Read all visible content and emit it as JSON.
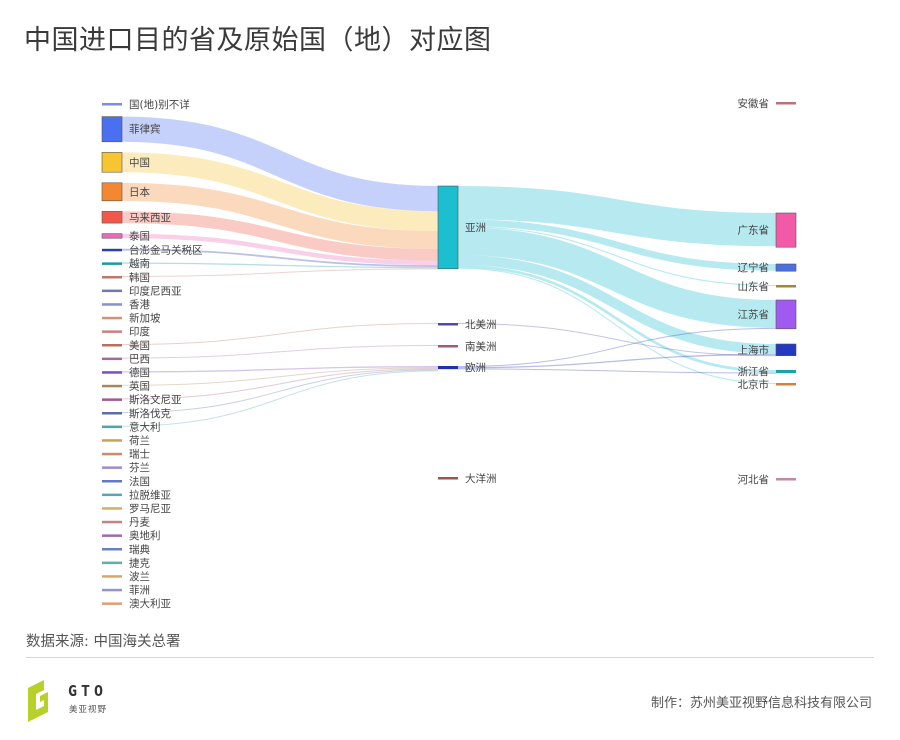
{
  "title": "中国进口目的省及原始国（地）对应图",
  "source": "数据来源: 中国海关总署",
  "footer": {
    "logo_text": "GTO",
    "logo_sub": "美亚视野",
    "maker": "制作：苏州美亚视野信息科技有限公司"
  },
  "chart_data": {
    "type": "sankey",
    "columns": [
      "origin",
      "continent",
      "province"
    ],
    "nodes": {
      "origins": [
        {
          "name": "国(地)别不详",
          "value": 0.3,
          "color": "#7b8fd8"
        },
        {
          "name": "菲律宾",
          "value": 28,
          "color": "#4a6ff0"
        },
        {
          "name": "中国",
          "value": 22,
          "color": "#f7c531"
        },
        {
          "name": "日本",
          "value": 20,
          "color": "#f48830"
        },
        {
          "name": "马来西亚",
          "value": 13,
          "color": "#ef5a4c"
        },
        {
          "name": "泰国",
          "value": 5,
          "color": "#ea6cb6"
        },
        {
          "name": "台澎金马关税区",
          "value": 2,
          "color": "#2c3fae"
        },
        {
          "name": "越南",
          "value": 1.5,
          "color": "#1b9aa3"
        },
        {
          "name": "韩国",
          "value": 1.3,
          "color": "#c0776a"
        },
        {
          "name": "印度尼西亚",
          "value": 1.2,
          "color": "#6a7bb5"
        },
        {
          "name": "香港",
          "value": 1.2,
          "color": "#8a8fc7"
        },
        {
          "name": "新加坡",
          "value": 1.1,
          "color": "#d79070"
        },
        {
          "name": "印度",
          "value": 1.1,
          "color": "#c97f7f"
        },
        {
          "name": "美国",
          "value": 1.1,
          "color": "#b96f5d"
        },
        {
          "name": "巴西",
          "value": 1.1,
          "color": "#9e6b9c"
        },
        {
          "name": "德国",
          "value": 2,
          "color": "#7a4fc3"
        },
        {
          "name": "英国",
          "value": 1.1,
          "color": "#a6875a"
        },
        {
          "name": "斯洛文尼亚",
          "value": 1.1,
          "color": "#a05a8b"
        },
        {
          "name": "斯洛伐克",
          "value": 1.1,
          "color": "#5a6da8"
        },
        {
          "name": "意大利",
          "value": 1.1,
          "color": "#4ea4a8"
        },
        {
          "name": "荷兰",
          "value": 1.1,
          "color": "#c7a15a"
        },
        {
          "name": "瑞士",
          "value": 1.1,
          "color": "#d38966"
        },
        {
          "name": "芬兰",
          "value": 1.1,
          "color": "#9f8cc6"
        },
        {
          "name": "法国",
          "value": 1.1,
          "color": "#6675c4"
        },
        {
          "name": "拉脱维亚",
          "value": 1.1,
          "color": "#58a7b0"
        },
        {
          "name": "罗马尼亚",
          "value": 1.1,
          "color": "#d3ad63"
        },
        {
          "name": "丹麦",
          "value": 1.1,
          "color": "#c98080"
        },
        {
          "name": "奥地利",
          "value": 1.1,
          "color": "#a06aa5"
        },
        {
          "name": "瑞典",
          "value": 1.1,
          "color": "#6b7fc7"
        },
        {
          "name": "捷克",
          "value": 1.1,
          "color": "#5bb0b3"
        },
        {
          "name": "波兰",
          "value": 1.1,
          "color": "#d2aa62"
        },
        {
          "name": "菲洲",
          "value": 1.1,
          "color": "#9b8fd6"
        },
        {
          "name": "澳大利亚",
          "value": 1.1,
          "color": "#d9a07a"
        }
      ],
      "continents": [
        {
          "name": "亚洲",
          "value": 92,
          "color": "#1bbfd0"
        },
        {
          "name": "北美洲",
          "value": 1.1,
          "color": "#4c4ca8"
        },
        {
          "name": "南美洲",
          "value": 1.1,
          "color": "#a05a7a"
        },
        {
          "name": "欧洲",
          "value": 3.5,
          "color": "#2231b0"
        },
        {
          "name": "大洋洲",
          "value": 1.1,
          "color": "#a0524f"
        }
      ],
      "provinces": [
        {
          "name": "安徽省",
          "value": 0.3,
          "color": "#c0707a"
        },
        {
          "name": "广东省",
          "value": 38,
          "color": "#f25aa8"
        },
        {
          "name": "辽宁省",
          "value": 8,
          "color": "#4a6fe0"
        },
        {
          "name": "山东省",
          "value": 1.3,
          "color": "#a8892a"
        },
        {
          "name": "江苏省",
          "value": 32,
          "color": "#a05af0"
        },
        {
          "name": "上海市",
          "value": 13,
          "color": "#2438c0"
        },
        {
          "name": "浙江省",
          "value": 3.5,
          "color": "#1aa3a8"
        },
        {
          "name": "北京市",
          "value": 1.5,
          "color": "#d2804a"
        },
        {
          "name": "河北省",
          "value": 0.3,
          "color": "#c08aa5"
        }
      ]
    },
    "links_origin_to_continent": [
      {
        "source": "菲律宾",
        "target": "亚洲",
        "value": 28
      },
      {
        "source": "中国",
        "target": "亚洲",
        "value": 22
      },
      {
        "source": "日本",
        "target": "亚洲",
        "value": 20
      },
      {
        "source": "马来西亚",
        "target": "亚洲",
        "value": 13
      },
      {
        "source": "泰国",
        "target": "亚洲",
        "value": 5
      },
      {
        "source": "台澎金马关税区",
        "target": "亚洲",
        "value": 2
      },
      {
        "source": "越南",
        "target": "亚洲",
        "value": 1.5
      },
      {
        "source": "韩国",
        "target": "亚洲",
        "value": 0.5
      },
      {
        "source": "美国",
        "target": "北美洲",
        "value": 0.3
      },
      {
        "source": "巴西",
        "target": "南美洲",
        "value": 0.3
      },
      {
        "source": "德国",
        "target": "欧洲",
        "value": 1.5
      },
      {
        "source": "英国",
        "target": "欧洲",
        "value": 0.3
      },
      {
        "source": "斯洛文尼亚",
        "target": "欧洲",
        "value": 0.3
      },
      {
        "source": "斯洛伐克",
        "target": "欧洲",
        "value": 0.3
      },
      {
        "source": "意大利",
        "target": "欧洲",
        "value": 0.3
      }
    ],
    "links_continent_to_province": [
      {
        "source": "亚洲",
        "target": "广东省",
        "value": 37
      },
      {
        "source": "亚洲",
        "target": "辽宁省",
        "value": 7.5
      },
      {
        "source": "亚洲",
        "target": "山东省",
        "value": 1.2
      },
      {
        "source": "亚洲",
        "target": "江苏省",
        "value": 31
      },
      {
        "source": "亚洲",
        "target": "上海市",
        "value": 11
      },
      {
        "source": "亚洲",
        "target": "浙江省",
        "value": 3
      },
      {
        "source": "亚洲",
        "target": "北京市",
        "value": 1.2
      },
      {
        "source": "欧洲",
        "target": "江苏省",
        "value": 0.6
      },
      {
        "source": "欧洲",
        "target": "上海市",
        "value": 1.5
      },
      {
        "source": "欧洲",
        "target": "浙江省",
        "value": 0.3
      },
      {
        "source": "北美洲",
        "target": "上海市",
        "value": 0.3
      }
    ]
  }
}
